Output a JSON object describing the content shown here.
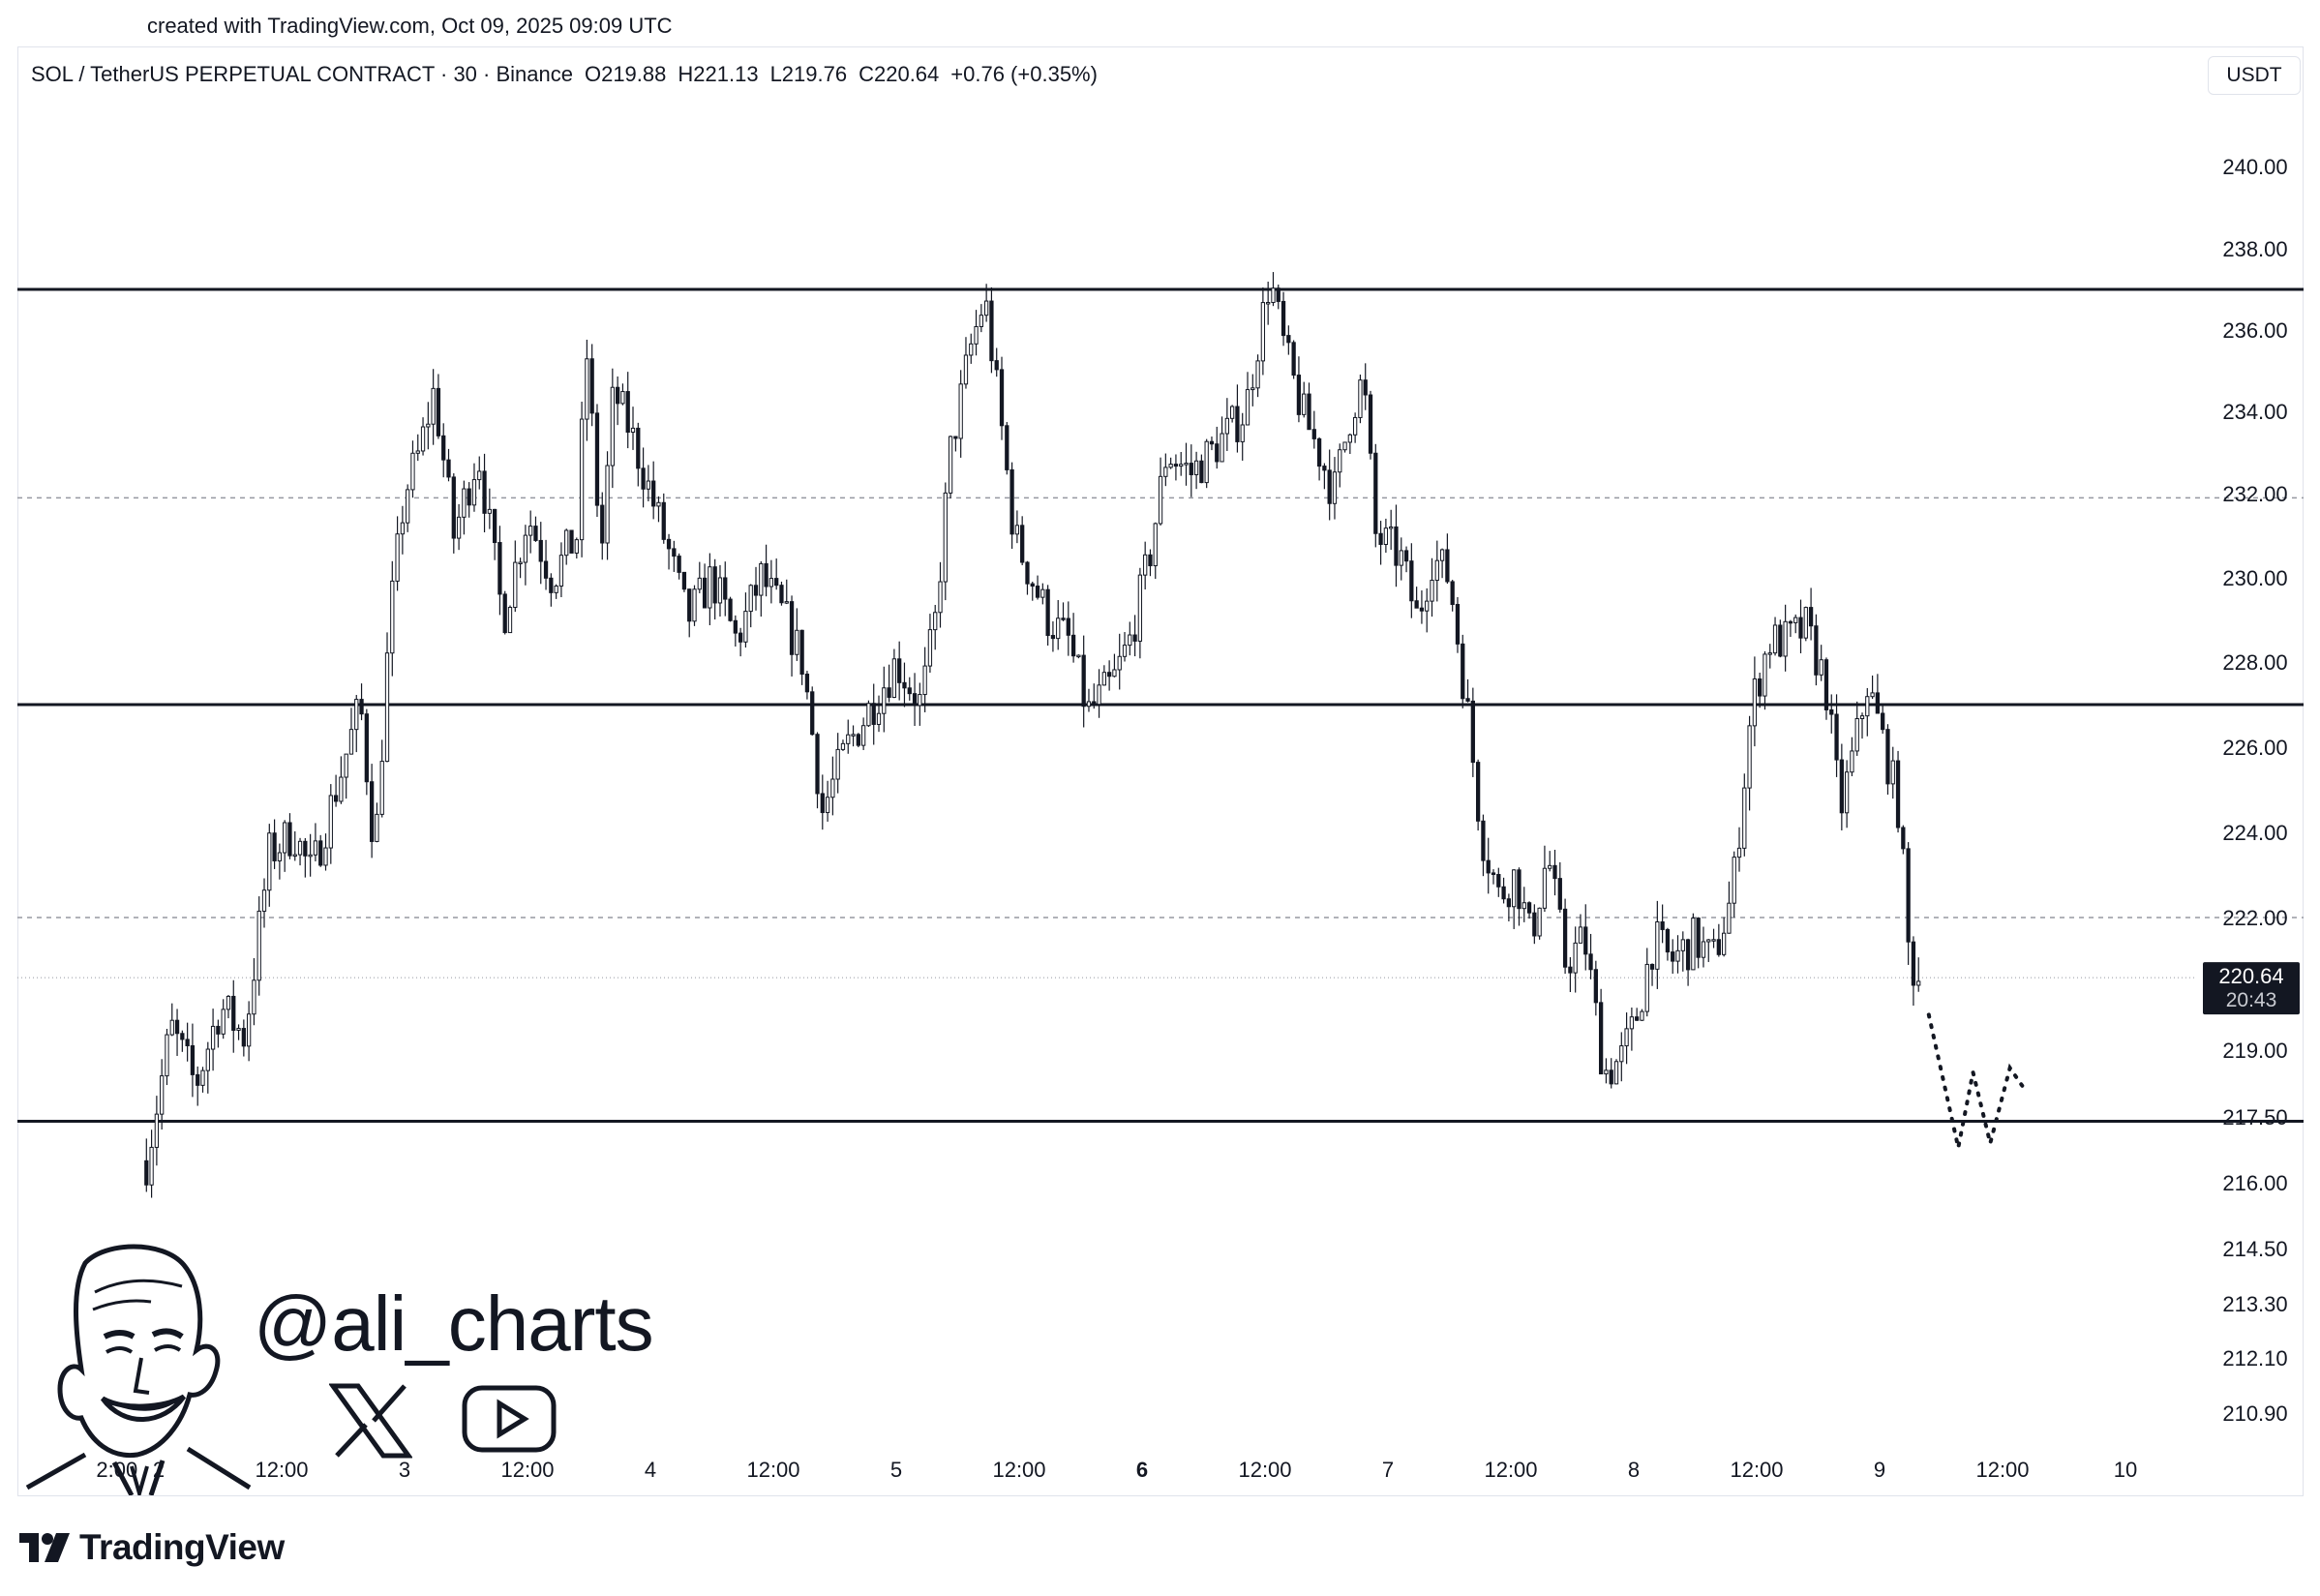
{
  "watermark": "created with TradingView.com, Oct 09, 2025 09:09 UTC",
  "legend": {
    "symbol": "SOL / TetherUS PERPETUAL CONTRACT · 30 · Binance",
    "open": "O219.88",
    "high": "H221.13",
    "low": "L219.76",
    "close": "C220.64",
    "change": "+0.76 (+0.35%)"
  },
  "currency": "USDT",
  "price_tag": {
    "price": "220.64",
    "countdown": "20:43"
  },
  "handle": "@ali_charts",
  "brand": "TradingView",
  "icons": [
    "avatar-caricature-icon",
    "x-logo-icon",
    "youtube-icon",
    "tradingview-logo-icon"
  ],
  "colors": {
    "candle": "#131722",
    "up_fill": "#ffffff",
    "down_fill": "#131722",
    "price_tag_bg": "#131722"
  },
  "chart_data": {
    "type": "candlestick",
    "title": "",
    "xlabel": "",
    "ylabel": "",
    "x_ticks": [
      "2:00",
      "2",
      "12:00",
      "3",
      "12:00",
      "4",
      "12:00",
      "5",
      "12:00",
      "6",
      "12:00",
      "7",
      "12:00",
      "8",
      "12:00",
      "9",
      "12:00",
      "10"
    ],
    "y_ticks": [
      "240.00",
      "238.00",
      "236.00",
      "234.00",
      "232.00",
      "230.00",
      "228.00",
      "226.00",
      "224.00",
      "222.00",
      "219.00",
      "217.50",
      "216.00",
      "214.50",
      "213.30",
      "212.10",
      "210.90"
    ],
    "y_tick_values": [
      240,
      238,
      236,
      234,
      232,
      230,
      228,
      226,
      224,
      222,
      219,
      217.5,
      216,
      214.5,
      213.3,
      212.1,
      210.9
    ],
    "ylim": [
      210.3,
      241.2
    ],
    "x_range_days": [
      1.9,
      10.1
    ],
    "support_resistance": [
      237.0,
      227.0,
      217.4
    ],
    "dashed_levels": [
      231.9,
      222.0
    ],
    "last_price": 220.64,
    "anchors": [
      [
        1.95,
        216.5
      ],
      [
        2.05,
        219.5
      ],
      [
        2.15,
        218.2
      ],
      [
        2.25,
        220.0
      ],
      [
        2.35,
        219.3
      ],
      [
        2.45,
        223.5
      ],
      [
        2.55,
        224.0
      ],
      [
        2.62,
        223.0
      ],
      [
        2.72,
        225.0
      ],
      [
        2.82,
        227.0
      ],
      [
        2.88,
        223.5
      ],
      [
        2.94,
        229.0
      ],
      [
        3.0,
        232.0
      ],
      [
        3.06,
        233.0
      ],
      [
        3.12,
        234.5
      ],
      [
        3.2,
        231.0
      ],
      [
        3.3,
        233.0
      ],
      [
        3.4,
        229.0
      ],
      [
        3.5,
        231.5
      ],
      [
        3.6,
        230.0
      ],
      [
        3.7,
        231.0
      ],
      [
        3.74,
        235.5
      ],
      [
        3.8,
        230.5
      ],
      [
        3.85,
        234.5
      ],
      [
        3.92,
        233.5
      ],
      [
        4.0,
        232.0
      ],
      [
        4.08,
        230.5
      ],
      [
        4.15,
        229.0
      ],
      [
        4.25,
        230.0
      ],
      [
        4.35,
        228.5
      ],
      [
        4.45,
        230.0
      ],
      [
        4.55,
        229.0
      ],
      [
        4.62,
        228.0
      ],
      [
        4.7,
        224.5
      ],
      [
        4.8,
        226.0
      ],
      [
        4.9,
        227.0
      ],
      [
        5.0,
        228.0
      ],
      [
        5.1,
        227.0
      ],
      [
        5.16,
        229.0
      ],
      [
        5.22,
        233.0
      ],
      [
        5.3,
        235.5
      ],
      [
        5.36,
        236.8
      ],
      [
        5.42,
        234.0
      ],
      [
        5.48,
        231.0
      ],
      [
        5.55,
        230.0
      ],
      [
        5.62,
        229.0
      ],
      [
        5.7,
        228.5
      ],
      [
        5.78,
        226.8
      ],
      [
        5.88,
        227.5
      ],
      [
        5.95,
        228.5
      ],
      [
        6.03,
        230.5
      ],
      [
        6.1,
        233.0
      ],
      [
        6.2,
        232.5
      ],
      [
        6.28,
        233.0
      ],
      [
        6.35,
        233.5
      ],
      [
        6.42,
        234.0
      ],
      [
        6.48,
        236.0
      ],
      [
        6.52,
        237.3
      ],
      [
        6.58,
        235.5
      ],
      [
        6.65,
        234.0
      ],
      [
        6.72,
        233.0
      ],
      [
        6.78,
        232.0
      ],
      [
        6.85,
        234.0
      ],
      [
        6.9,
        234.8
      ],
      [
        6.95,
        231.0
      ],
      [
        7.05,
        230.5
      ],
      [
        7.12,
        229.0
      ],
      [
        7.18,
        230.5
      ],
      [
        7.25,
        230.0
      ],
      [
        7.32,
        227.0
      ],
      [
        7.38,
        224.0
      ],
      [
        7.45,
        222.5
      ],
      [
        7.52,
        223.0
      ],
      [
        7.58,
        221.5
      ],
      [
        7.65,
        223.5
      ],
      [
        7.72,
        221.0
      ],
      [
        7.8,
        221.5
      ],
      [
        7.88,
        218.5
      ],
      [
        7.95,
        218.8
      ],
      [
        8.0,
        219.5
      ],
      [
        8.08,
        221.5
      ],
      [
        8.15,
        221.0
      ],
      [
        8.25,
        221.5
      ],
      [
        8.32,
        221.0
      ],
      [
        8.4,
        222.5
      ],
      [
        8.48,
        227.0
      ],
      [
        8.55,
        228.5
      ],
      [
        8.62,
        228.5
      ],
      [
        8.7,
        228.8
      ],
      [
        8.78,
        227.5
      ],
      [
        8.84,
        224.5
      ],
      [
        8.9,
        226.0
      ],
      [
        8.95,
        227.5
      ],
      [
        9.02,
        226.0
      ],
      [
        9.08,
        224.5
      ],
      [
        9.12,
        221.0
      ],
      [
        9.16,
        220.64
      ]
    ],
    "projection": [
      [
        9.2,
        219.8
      ],
      [
        9.32,
        216.8
      ],
      [
        9.38,
        218.5
      ],
      [
        9.45,
        216.9
      ],
      [
        9.53,
        218.6
      ],
      [
        9.58,
        218.2
      ]
    ]
  }
}
